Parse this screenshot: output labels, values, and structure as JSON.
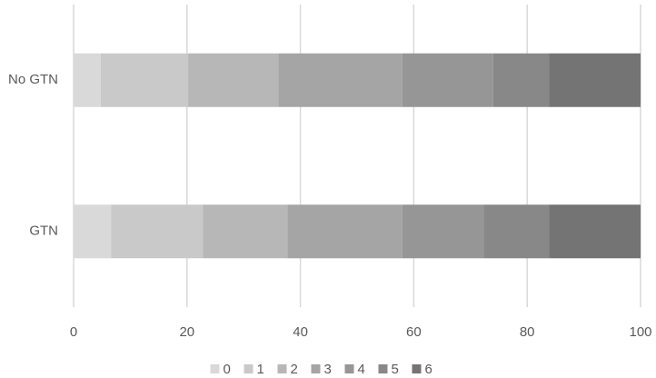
{
  "chart_data": {
    "type": "stacked-barh",
    "categories": [
      "No GTN",
      "GTN"
    ],
    "series": [
      {
        "name": "0",
        "color": "#d9d9d9",
        "values": [
          4.8,
          6.6
        ]
      },
      {
        "name": "1",
        "color": "#c9c9c9",
        "values": [
          15.4,
          16.2
        ]
      },
      {
        "name": "2",
        "color": "#b7b7b7",
        "values": [
          15.9,
          14.9
        ]
      },
      {
        "name": "3",
        "color": "#a5a5a5",
        "values": [
          21.9,
          20.3
        ]
      },
      {
        "name": "4",
        "color": "#969696",
        "values": [
          16.0,
          14.3
        ]
      },
      {
        "name": "5",
        "color": "#888888",
        "values": [
          9.9,
          11.6
        ]
      },
      {
        "name": "6",
        "color": "#747474",
        "values": [
          16.1,
          16.1
        ]
      }
    ],
    "xlim": [
      0,
      100
    ],
    "xticks": [
      0,
      20,
      40,
      60,
      80,
      100
    ],
    "grid": true,
    "legend": "bottom"
  }
}
